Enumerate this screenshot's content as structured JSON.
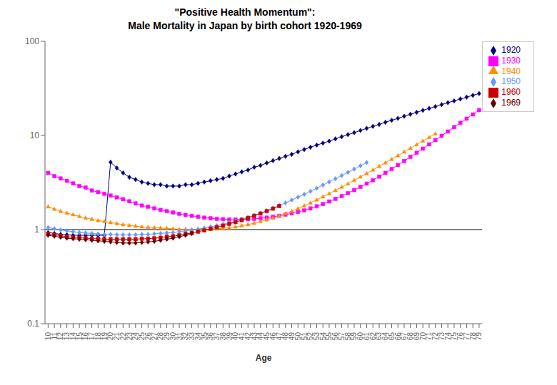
{
  "chart_data": {
    "type": "line",
    "title": "\"Positive Health Momentum\":",
    "subtitle": "Male Mortality in Japan by birth cohort 1920-1969",
    "x_label": "Age",
    "log": "y",
    "grid": false,
    "legend": "right",
    "hline": 1,
    "x": [
      10,
      11,
      12,
      13,
      14,
      15,
      16,
      17,
      18,
      19,
      20,
      21,
      22,
      23,
      24,
      25,
      26,
      27,
      28,
      29,
      30,
      31,
      32,
      33,
      34,
      35,
      36,
      37,
      38,
      39,
      40,
      41,
      42,
      43,
      44,
      45,
      46,
      47,
      48,
      49,
      50,
      51,
      52,
      53,
      54,
      55,
      56,
      57,
      58,
      59,
      60,
      61,
      62,
      63,
      64,
      65,
      66,
      67,
      68,
      69,
      70,
      71,
      72,
      73,
      74,
      75,
      76,
      77,
      78,
      79
    ],
    "xlim": [
      9.5,
      79.5
    ],
    "xticks": [
      10,
      11,
      12,
      13,
      14,
      15,
      16,
      17,
      18,
      19,
      20,
      21,
      22,
      23,
      24,
      25,
      26,
      27,
      28,
      29,
      30,
      31,
      32,
      33,
      34,
      35,
      36,
      37,
      38,
      39,
      40,
      41,
      42,
      43,
      44,
      45,
      46,
      47,
      48,
      49,
      50,
      51,
      52,
      53,
      54,
      55,
      56,
      57,
      58,
      59,
      60,
      61,
      62,
      63,
      64,
      65,
      66,
      67,
      68,
      69,
      70,
      71,
      72,
      73,
      74,
      75,
      76,
      77,
      78,
      79
    ],
    "ylim": [
      0.1,
      100
    ],
    "yticks": [
      0.1,
      1,
      10,
      100
    ],
    "series": [
      {
        "name": "1920",
        "color": "#000080",
        "marker": "diamond",
        "values": [
          0.93,
          0.91,
          0.89,
          0.88,
          0.87,
          0.87,
          0.87,
          0.87,
          0.87,
          0.87,
          5.2,
          4.5,
          4.0,
          3.6,
          3.4,
          3.2,
          3.1,
          3.0,
          3.0,
          2.9,
          2.9,
          2.9,
          3.0,
          3.0,
          3.1,
          3.2,
          3.3,
          3.4,
          3.5,
          3.7,
          3.9,
          4.1,
          4.3,
          4.6,
          4.8,
          5.1,
          5.4,
          5.7,
          6.0,
          6.3,
          6.7,
          7.1,
          7.5,
          7.9,
          8.3,
          8.7,
          9.2,
          9.7,
          10.2,
          10.7,
          11.3,
          11.9,
          12.5,
          13.1,
          13.8,
          14.5,
          15.2,
          16.0,
          16.8,
          17.6,
          18.5,
          19.4,
          20.3,
          21.3,
          22.3,
          23.3,
          24.4,
          25.5,
          26.7,
          27.9
        ]
      },
      {
        "name": "1930",
        "color": "#FF00FF",
        "marker": "square",
        "values": [
          4.0,
          3.7,
          3.5,
          3.3,
          3.1,
          2.9,
          2.8,
          2.6,
          2.5,
          2.4,
          2.3,
          2.2,
          2.1,
          2.0,
          1.9,
          1.8,
          1.75,
          1.68,
          1.62,
          1.57,
          1.52,
          1.47,
          1.43,
          1.4,
          1.37,
          1.34,
          1.32,
          1.3,
          1.29,
          1.28,
          1.28,
          1.28,
          1.29,
          1.3,
          1.32,
          1.34,
          1.37,
          1.4,
          1.44,
          1.49,
          1.54,
          1.6,
          1.68,
          1.77,
          1.87,
          1.99,
          2.12,
          2.27,
          2.44,
          2.63,
          2.84,
          3.08,
          3.35,
          3.65,
          4.0,
          4.4,
          4.85,
          5.35,
          5.92,
          6.55,
          7.25,
          8.05,
          8.94,
          9.93,
          11.03,
          12.25,
          13.6,
          15.1,
          16.75,
          18.6
        ]
      },
      {
        "name": "1940",
        "color": "#FF8C00",
        "marker": "triangle",
        "values": [
          1.75,
          1.65,
          1.57,
          1.5,
          1.44,
          1.38,
          1.33,
          1.29,
          1.25,
          1.22,
          1.19,
          1.16,
          1.13,
          1.11,
          1.09,
          1.07,
          1.06,
          1.05,
          1.04,
          1.03,
          1.02,
          1.01,
          1.01,
          1.0,
          1.0,
          1.0,
          1.01,
          1.02,
          1.03,
          1.05,
          1.07,
          1.1,
          1.13,
          1.17,
          1.22,
          1.27,
          1.33,
          1.4,
          1.48,
          1.57,
          1.67,
          1.79,
          1.92,
          2.07,
          2.23,
          2.41,
          2.61,
          2.83,
          3.07,
          3.34,
          3.63,
          3.95,
          4.31,
          4.7,
          5.13,
          5.6,
          6.12,
          6.69,
          7.31,
          7.99,
          8.74,
          9.55,
          10.44,
          null,
          null,
          null,
          null,
          null,
          null,
          null
        ]
      },
      {
        "name": "1950",
        "color": "#6699FF",
        "marker": "diamond",
        "values": [
          1.05,
          1.02,
          0.99,
          0.97,
          0.95,
          0.93,
          0.92,
          0.91,
          0.9,
          0.89,
          0.89,
          0.88,
          0.88,
          0.88,
          0.88,
          0.89,
          0.89,
          0.9,
          0.91,
          0.92,
          0.93,
          0.95,
          0.97,
          0.99,
          1.01,
          1.04,
          1.07,
          1.1,
          1.14,
          1.18,
          1.23,
          1.29,
          1.35,
          1.42,
          1.5,
          1.59,
          1.69,
          1.8,
          1.92,
          2.06,
          2.21,
          2.37,
          2.55,
          2.75,
          2.97,
          3.21,
          3.47,
          3.75,
          4.06,
          4.39,
          4.76,
          5.16,
          null,
          null,
          null,
          null,
          null,
          null,
          null,
          null,
          null,
          null,
          null,
          null,
          null,
          null,
          null,
          null,
          null,
          null
        ]
      },
      {
        "name": "1960",
        "color": "#CC0000",
        "marker": "square",
        "values": [
          0.9,
          0.88,
          0.86,
          0.84,
          0.83,
          0.82,
          0.81,
          0.8,
          0.8,
          0.79,
          0.79,
          0.79,
          0.79,
          0.79,
          0.79,
          0.8,
          0.8,
          0.81,
          0.82,
          0.84,
          0.85,
          0.87,
          0.9,
          0.92,
          0.95,
          0.98,
          1.02,
          1.06,
          1.1,
          1.15,
          1.2,
          1.26,
          1.33,
          1.4,
          1.48,
          1.57,
          1.67,
          1.78,
          null,
          null,
          null,
          null,
          null,
          null,
          null,
          null,
          null,
          null,
          null,
          null,
          null,
          null,
          null,
          null,
          null,
          null,
          null,
          null,
          null,
          null,
          null,
          null,
          null,
          null,
          null,
          null,
          null,
          null,
          null,
          null
        ]
      },
      {
        "name": "1969",
        "color": "#660000",
        "marker": "diamond",
        "values": [
          0.87,
          0.85,
          0.83,
          0.81,
          0.8,
          0.79,
          0.78,
          0.77,
          0.76,
          0.75,
          0.74,
          0.73,
          0.72,
          0.72,
          0.72,
          0.73,
          0.74,
          0.75,
          0.77,
          0.79,
          0.81,
          0.84,
          0.87,
          0.91,
          null,
          null,
          null,
          null,
          null,
          null,
          null,
          null,
          null,
          null,
          null,
          null,
          null,
          null,
          null,
          null,
          null,
          null,
          null,
          null,
          null,
          null,
          null,
          null,
          null,
          null,
          null,
          null,
          null,
          null,
          null,
          null,
          null,
          null,
          null,
          null,
          null,
          null,
          null,
          null,
          null,
          null,
          null,
          null,
          null,
          null
        ]
      }
    ]
  }
}
